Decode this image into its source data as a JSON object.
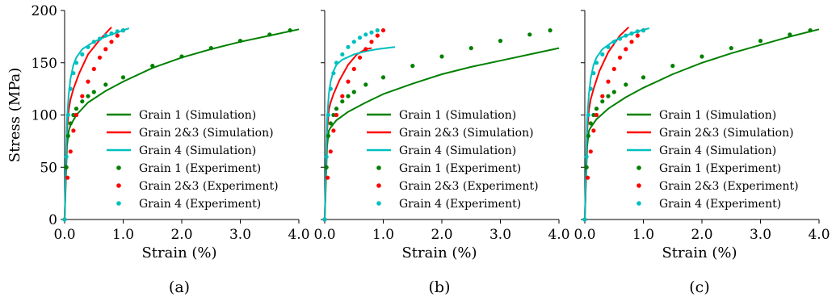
{
  "colors": {
    "grain1": "#008000",
    "grain23": "#ff0000",
    "grain4": "#00bfbf"
  },
  "chart_data": [
    {
      "type": "line",
      "caption": "(a)",
      "xlabel": "Strain (%)",
      "ylabel": "Stress (MPa)",
      "xlim": [
        0,
        4.0
      ],
      "ylim": [
        0,
        200
      ],
      "xticks": [
        "0.0",
        "1.0",
        "2.0",
        "3.0",
        "4.0"
      ],
      "yticks": [
        "0",
        "50",
        "100",
        "150",
        "200"
      ],
      "legend": {
        "placement": "center-right",
        "entries": [
          {
            "label": "Grain 1 (Simulation)",
            "marker": "line",
            "color": "#008000"
          },
          {
            "label": "Grain 2&3 (Simulation)",
            "marker": "line",
            "color": "#ff0000"
          },
          {
            "label": "Grain 4 (Simulation)",
            "marker": "line",
            "color": "#00bfbf"
          },
          {
            "label": "Grain 1 (Experiment)",
            "marker": "dot",
            "color": "#008000"
          },
          {
            "label": "Grain 2&3 (Experiment)",
            "marker": "dot",
            "color": "#ff0000"
          },
          {
            "label": "Grain 4 (Experiment)",
            "marker": "dot",
            "color": "#00bfbf"
          }
        ]
      },
      "series": [
        {
          "name": "Grain 1 (Simulation)",
          "style": "line",
          "color": "#008000",
          "x": [
            0,
            0.04,
            0.07,
            0.1,
            0.2,
            0.4,
            0.7,
            1.0,
            1.5,
            2.0,
            2.5,
            3.0,
            3.5,
            4.0
          ],
          "y": [
            0,
            70,
            85,
            90,
            100,
            112,
            123,
            132,
            145,
            155,
            163,
            170,
            176,
            182
          ]
        },
        {
          "name": "Grain 2&3 (Simulation)",
          "style": "line",
          "color": "#ff0000",
          "x": [
            0,
            0.04,
            0.07,
            0.1,
            0.15,
            0.25,
            0.4,
            0.6,
            0.8
          ],
          "y": [
            0,
            85,
            105,
            115,
            125,
            140,
            158,
            172,
            184
          ]
        },
        {
          "name": "Grain 4 (Simulation)",
          "style": "line",
          "color": "#00bfbf",
          "x": [
            0,
            0.04,
            0.07,
            0.1,
            0.15,
            0.2,
            0.3,
            0.5,
            0.7,
            0.9,
            1.1
          ],
          "y": [
            0,
            95,
            120,
            135,
            148,
            155,
            163,
            170,
            175,
            179,
            183
          ]
        },
        {
          "name": "Grain 1 (Experiment)",
          "style": "dots",
          "color": "#008000",
          "x": [
            0,
            0.03,
            0.06,
            0.1,
            0.15,
            0.2,
            0.3,
            0.4,
            0.5,
            0.7,
            1.0,
            1.5,
            2.0,
            2.5,
            3.0,
            3.5,
            3.85
          ],
          "y": [
            0,
            50,
            80,
            92,
            100,
            106,
            113,
            118,
            122,
            129,
            136,
            147,
            156,
            164,
            171,
            177,
            181
          ]
        },
        {
          "name": "Grain 2&3 (Experiment)",
          "style": "dots",
          "color": "#ff0000",
          "x": [
            0,
            0.05,
            0.1,
            0.15,
            0.2,
            0.3,
            0.4,
            0.5,
            0.6,
            0.7,
            0.8,
            0.9,
            1.0
          ],
          "y": [
            0,
            40,
            65,
            85,
            100,
            118,
            132,
            144,
            155,
            163,
            170,
            176,
            181
          ]
        },
        {
          "name": "Grain 4 (Experiment)",
          "style": "dots",
          "color": "#00bfbf",
          "x": [
            0,
            0.03,
            0.06,
            0.1,
            0.15,
            0.2,
            0.3,
            0.4,
            0.5,
            0.6,
            0.7,
            0.8,
            0.9,
            1.0
          ],
          "y": [
            0,
            60,
            100,
            125,
            140,
            150,
            158,
            165,
            170,
            173,
            176,
            178,
            180,
            181
          ]
        }
      ]
    },
    {
      "type": "line",
      "caption": "(b)",
      "xlabel": "Strain (%)",
      "ylabel": "",
      "xlim": [
        0,
        4.0
      ],
      "ylim": [
        0,
        200
      ],
      "xticks": [
        "0.0",
        "1.0",
        "2.0",
        "3.0",
        "4.0"
      ],
      "yticks": [],
      "legend": {
        "placement": "center-right",
        "entries": [
          {
            "label": "Grain 1 (Simulation)",
            "marker": "line",
            "color": "#008000"
          },
          {
            "label": "Grain 2&3 (Simulation)",
            "marker": "line",
            "color": "#ff0000"
          },
          {
            "label": "Grain 4 (Simulation)",
            "marker": "line",
            "color": "#00bfbf"
          },
          {
            "label": "Grain 1 (Experiment)",
            "marker": "dot",
            "color": "#008000"
          },
          {
            "label": "Grain 2&3 (Experiment)",
            "marker": "dot",
            "color": "#ff0000"
          },
          {
            "label": "Grain 4 (Experiment)",
            "marker": "dot",
            "color": "#00bfbf"
          }
        ]
      },
      "series": [
        {
          "name": "Grain 1 (Simulation)",
          "style": "line",
          "color": "#008000",
          "x": [
            0,
            0.04,
            0.07,
            0.1,
            0.2,
            0.4,
            0.7,
            1.0,
            1.5,
            2.0,
            2.5,
            3.0,
            3.5,
            4.0
          ],
          "y": [
            0,
            70,
            85,
            88,
            95,
            103,
            112,
            120,
            130,
            139,
            146,
            152,
            158,
            164
          ]
        },
        {
          "name": "Grain 2&3 (Simulation)",
          "style": "line",
          "color": "#ff0000",
          "x": [
            0,
            0.04,
            0.07,
            0.1,
            0.15,
            0.25,
            0.4,
            0.55,
            0.7,
            0.8
          ],
          "y": [
            0,
            85,
            105,
            112,
            120,
            133,
            148,
            158,
            163,
            164
          ]
        },
        {
          "name": "Grain 4 (Simulation)",
          "style": "line",
          "color": "#00bfbf",
          "x": [
            0,
            0.04,
            0.07,
            0.1,
            0.15,
            0.2,
            0.3,
            0.5,
            0.7,
            0.9,
            1.2
          ],
          "y": [
            0,
            95,
            120,
            132,
            142,
            148,
            153,
            158,
            161,
            163,
            165
          ]
        },
        {
          "name": "Grain 1 (Experiment)",
          "style": "dots",
          "color": "#008000",
          "x": [
            0,
            0.03,
            0.06,
            0.1,
            0.15,
            0.2,
            0.3,
            0.4,
            0.5,
            0.7,
            1.0,
            1.5,
            2.0,
            2.5,
            3.0,
            3.5,
            3.85
          ],
          "y": [
            0,
            50,
            80,
            92,
            100,
            106,
            113,
            118,
            122,
            129,
            136,
            147,
            156,
            164,
            171,
            177,
            181
          ]
        },
        {
          "name": "Grain 2&3 (Experiment)",
          "style": "dots",
          "color": "#ff0000",
          "x": [
            0,
            0.05,
            0.1,
            0.15,
            0.2,
            0.3,
            0.4,
            0.5,
            0.6,
            0.7,
            0.8,
            0.9,
            1.0
          ],
          "y": [
            0,
            40,
            65,
            85,
            100,
            118,
            132,
            144,
            155,
            163,
            170,
            176,
            181
          ]
        },
        {
          "name": "Grain 4 (Experiment)",
          "style": "dots",
          "color": "#00bfbf",
          "x": [
            0,
            0.03,
            0.06,
            0.1,
            0.15,
            0.2,
            0.3,
            0.4,
            0.5,
            0.6,
            0.7,
            0.8,
            0.9
          ],
          "y": [
            0,
            60,
            100,
            125,
            140,
            150,
            158,
            165,
            170,
            174,
            177,
            179,
            181
          ]
        }
      ]
    },
    {
      "type": "line",
      "caption": "(c)",
      "xlabel": "Strain (%)",
      "ylabel": "",
      "xlim": [
        0,
        4.0
      ],
      "ylim": [
        0,
        200
      ],
      "xticks": [
        "0.0",
        "1.0",
        "2.0",
        "3.0",
        "4.0"
      ],
      "yticks": [],
      "legend": {
        "placement": "center-right",
        "entries": [
          {
            "label": "Grain 1 (Simulation)",
            "marker": "line",
            "color": "#008000"
          },
          {
            "label": "Grain 2&3 (Simulation)",
            "marker": "line",
            "color": "#ff0000"
          },
          {
            "label": "Grain 4 (Simulation)",
            "marker": "line",
            "color": "#00bfbf"
          },
          {
            "label": "Grain 1 (Experiment)",
            "marker": "dot",
            "color": "#008000"
          },
          {
            "label": "Grain 2&3 (Experiment)",
            "marker": "dot",
            "color": "#ff0000"
          },
          {
            "label": "Grain 4 (Experiment)",
            "marker": "dot",
            "color": "#00bfbf"
          }
        ]
      },
      "series": [
        {
          "name": "Grain 1 (Simulation)",
          "style": "line",
          "color": "#008000",
          "x": [
            0,
            0.04,
            0.07,
            0.1,
            0.2,
            0.4,
            0.7,
            1.0,
            1.5,
            2.0,
            2.5,
            3.0,
            3.5,
            4.0
          ],
          "y": [
            0,
            70,
            85,
            88,
            96,
            106,
            117,
            126,
            139,
            150,
            159,
            167,
            175,
            182
          ]
        },
        {
          "name": "Grain 2&3 (Simulation)",
          "style": "line",
          "color": "#ff0000",
          "x": [
            0,
            0.04,
            0.07,
            0.1,
            0.15,
            0.25,
            0.4,
            0.6,
            0.75
          ],
          "y": [
            0,
            85,
            105,
            115,
            125,
            142,
            160,
            176,
            184
          ]
        },
        {
          "name": "Grain 4 (Simulation)",
          "style": "line",
          "color": "#00bfbf",
          "x": [
            0,
            0.04,
            0.07,
            0.1,
            0.15,
            0.2,
            0.3,
            0.5,
            0.7,
            0.9,
            1.1
          ],
          "y": [
            0,
            95,
            120,
            135,
            148,
            155,
            163,
            171,
            176,
            180,
            183
          ]
        },
        {
          "name": "Grain 1 (Experiment)",
          "style": "dots",
          "color": "#008000",
          "x": [
            0,
            0.03,
            0.06,
            0.1,
            0.15,
            0.2,
            0.3,
            0.4,
            0.5,
            0.7,
            1.0,
            1.5,
            2.0,
            2.5,
            3.0,
            3.5,
            3.85
          ],
          "y": [
            0,
            50,
            80,
            92,
            100,
            106,
            113,
            118,
            122,
            129,
            136,
            147,
            156,
            164,
            171,
            177,
            181
          ]
        },
        {
          "name": "Grain 2&3 (Experiment)",
          "style": "dots",
          "color": "#ff0000",
          "x": [
            0,
            0.05,
            0.1,
            0.15,
            0.2,
            0.3,
            0.4,
            0.5,
            0.6,
            0.7,
            0.8,
            0.9,
            1.0
          ],
          "y": [
            0,
            40,
            65,
            85,
            100,
            118,
            132,
            144,
            155,
            163,
            170,
            176,
            181
          ]
        },
        {
          "name": "Grain 4 (Experiment)",
          "style": "dots",
          "color": "#00bfbf",
          "x": [
            0,
            0.03,
            0.06,
            0.1,
            0.15,
            0.2,
            0.3,
            0.4,
            0.5,
            0.6,
            0.7,
            0.8,
            0.9,
            1.0
          ],
          "y": [
            0,
            60,
            100,
            125,
            140,
            150,
            158,
            165,
            170,
            173,
            176,
            178,
            180,
            181
          ]
        }
      ]
    }
  ]
}
